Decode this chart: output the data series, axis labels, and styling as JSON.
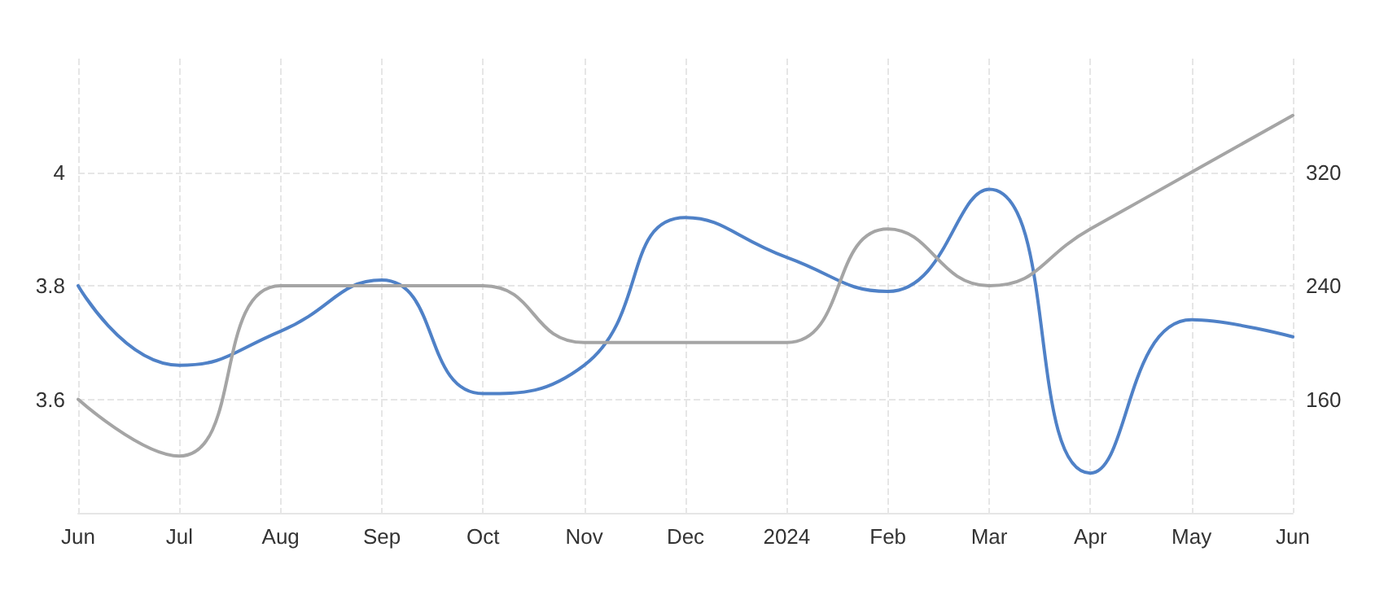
{
  "chart_data": {
    "type": "line",
    "categories": [
      "Jun",
      "Jul",
      "Aug",
      "Sep",
      "Oct",
      "Nov",
      "Dec",
      "2024",
      "Feb",
      "Mar",
      "Apr",
      "May",
      "Jun"
    ],
    "series": [
      {
        "color": "#4f81c7",
        "values": [
          3.8,
          3.66,
          3.72,
          3.81,
          3.61,
          3.66,
          3.92,
          3.85,
          3.79,
          3.97,
          3.47,
          3.74,
          3.71
        ]
      },
      {
        "color": "#a5a5a5",
        "axis": "y2",
        "values": [
          160,
          120,
          240,
          240,
          240,
          200,
          200,
          200,
          280,
          240,
          280,
          320,
          360
        ]
      }
    ],
    "ylim": [
      3.4,
      4.2
    ],
    "yticks": [
      3.6,
      3.8,
      4
    ],
    "y2lim": [
      80,
      400
    ],
    "y2ticks": [
      160,
      240,
      320
    ],
    "grid": true,
    "marker": "none",
    "line_style": "solid"
  }
}
